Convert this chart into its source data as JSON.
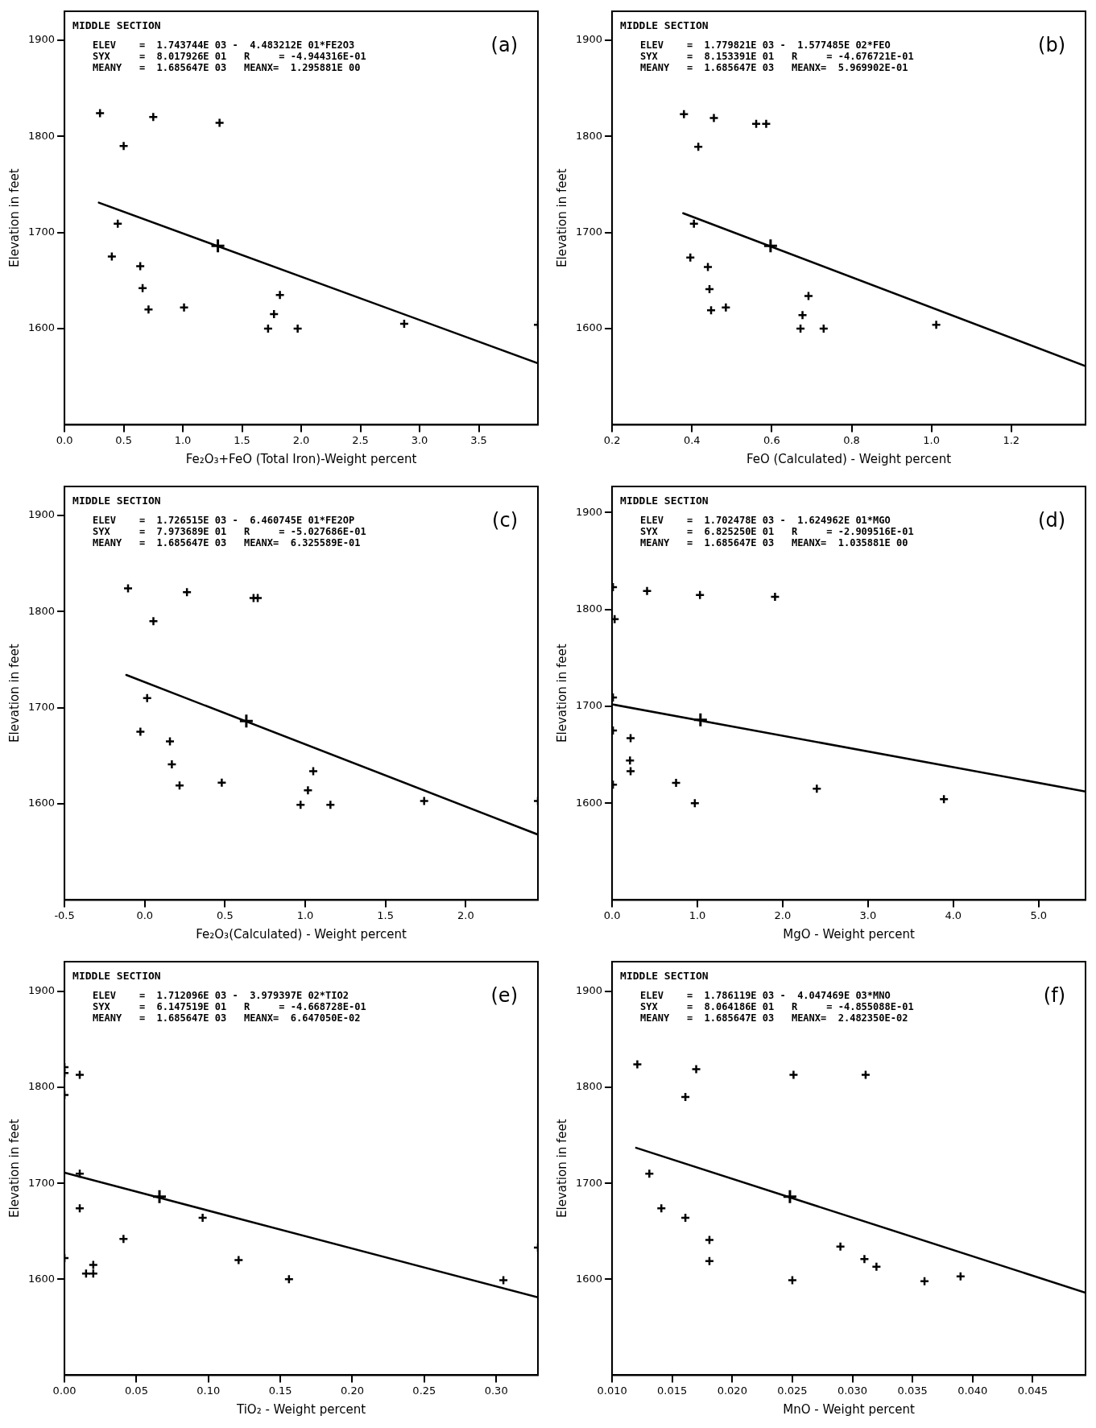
{
  "chart_data": [
    {
      "type": "scatter",
      "title": "MIDDLE SECTION",
      "xlabel": "Fe₂O₃+FeO (Total Iron)-Weight percent",
      "ylabel": "Elevation in feet",
      "annotations": [
        "ELEV    =  1.743744E 03 -  4.483212E 01*FE2O3",
        "SYX     =  8.017926E 01   R     = -4.944316E-01",
        "MEANY   =  1.685647E 03   MEANX=  1.295881E 00",
        "(a)"
      ],
      "xlim": [
        0,
        4.0
      ],
      "ylim": [
        1500,
        1930
      ],
      "xticks": [
        {
          "value": 0,
          "label": "0.0"
        },
        {
          "value": 0.5,
          "label": "0.5"
        },
        {
          "value": 1,
          "label": "1.0"
        },
        {
          "value": 1.5,
          "label": "1.5"
        },
        {
          "value": 2,
          "label": "2.0"
        },
        {
          "value": 2.5,
          "label": "2.5"
        },
        {
          "value": 3,
          "label": "3.0"
        },
        {
          "value": 3.5,
          "label": "3.5"
        }
      ],
      "yticks": [
        1600,
        1700,
        1800,
        1900
      ],
      "legend": false,
      "marker": "cross",
      "series": [
        {
          "type": "scatter",
          "color": "#000000",
          "x": [
            0.3,
            0.5,
            0.75,
            1.31,
            0.45,
            0.4,
            0.64,
            0.66,
            0.71,
            1.01,
            1.82,
            1.77,
            1.72,
            1.97,
            2.87,
            4.0
          ],
          "values": [
            1824,
            1790,
            1820,
            1814,
            1709,
            1675,
            1665,
            1642,
            1620,
            1622,
            1635,
            1615,
            1600,
            1600,
            1605,
            1604
          ]
        },
        {
          "type": "scatter",
          "color": "#000000",
          "x": [
            1.296
          ],
          "values": [
            1686
          ]
        },
        {
          "type": "line",
          "color": "#000000",
          "marker": "none",
          "x": [
            0.29,
            4.0
          ],
          "values": [
            1731,
            1564
          ]
        }
      ]
    },
    {
      "type": "scatter",
      "title": "MIDDLE SECTION",
      "xlabel": "FeO (Calculated) - Weight percent",
      "ylabel": "Elevation in feet",
      "annotations": [
        "ELEV    =  1.779821E 03 -  1.577485E 02*FEO",
        "SYX     =  8.153391E 01   R     = -4.676721E-01",
        "MEANY   =  1.685647E 03   MEANX=  5.969902E-01",
        "(b)"
      ],
      "xlim": [
        0.2,
        1.386
      ],
      "ylim": [
        1500,
        1930
      ],
      "xticks": [
        {
          "value": 0.2,
          "label": "0.2"
        },
        {
          "value": 0.4,
          "label": "0.4"
        },
        {
          "value": 0.6,
          "label": "0.6"
        },
        {
          "value": 0.8,
          "label": "0.8"
        },
        {
          "value": 1.0,
          "label": "1.0"
        },
        {
          "value": 1.2,
          "label": "1.2"
        }
      ],
      "yticks": [
        1600,
        1700,
        1800,
        1900
      ],
      "legend": false,
      "marker": "cross",
      "series": [
        {
          "type": "scatter",
          "color": "#000000",
          "x": [
            0.38,
            0.416,
            0.455,
            0.561,
            0.586,
            0.405,
            0.396,
            0.44,
            0.444,
            0.448,
            0.485,
            0.692,
            0.677,
            0.672,
            0.73,
            1.012
          ],
          "values": [
            1823,
            1789,
            1819,
            1813,
            1813,
            1709,
            1674,
            1664,
            1641,
            1619,
            1622,
            1634,
            1614,
            1600,
            1600,
            1604
          ]
        },
        {
          "type": "scatter",
          "color": "#000000",
          "x": [
            0.597
          ],
          "values": [
            1686
          ]
        },
        {
          "type": "line",
          "color": "#000000",
          "marker": "none",
          "x": [
            0.378,
            1.386
          ],
          "values": [
            1720,
            1561
          ]
        }
      ]
    },
    {
      "type": "scatter",
      "title": "MIDDLE SECTION",
      "xlabel": "Fe₂O₃(Calculated) - Weight percent",
      "ylabel": "Elevation in feet",
      "annotations": [
        "ELEV    =  1.726515E 03 -  6.460745E 01*FE2OP",
        "SYX     =  7.973689E 01   R     = -5.027686E-01",
        "MEANY   =  1.685647E 03   MEANX=  6.325589E-01",
        "(c)"
      ],
      "xlim": [
        -0.5,
        2.45
      ],
      "ylim": [
        1500,
        1930
      ],
      "xticks": [
        {
          "value": -0.5,
          "label": "-0.5"
        },
        {
          "value": 0,
          "label": "0.0"
        },
        {
          "value": 0.5,
          "label": "0.5"
        },
        {
          "value": 1,
          "label": "1.0"
        },
        {
          "value": 1.5,
          "label": "1.5"
        },
        {
          "value": 2,
          "label": "2.0"
        }
      ],
      "yticks": [
        1600,
        1700,
        1800,
        1900
      ],
      "legend": false,
      "marker": "cross",
      "series": [
        {
          "type": "scatter",
          "color": "#000000",
          "x": [
            -0.104,
            0.054,
            0.263,
            0.678,
            0.704,
            0.015,
            -0.027,
            0.157,
            0.169,
            0.217,
            0.48,
            1.05,
            1.017,
            0.971,
            1.157,
            1.741,
            2.45
          ],
          "values": [
            1824,
            1790,
            1820,
            1814,
            1814,
            1710,
            1675,
            1665,
            1641,
            1619,
            1622,
            1634,
            1614,
            1599,
            1599,
            1603,
            1603
          ]
        },
        {
          "type": "scatter",
          "color": "#000000",
          "x": [
            0.633
          ],
          "values": [
            1686
          ]
        },
        {
          "type": "line",
          "color": "#000000",
          "marker": "none",
          "x": [
            -0.115,
            2.45
          ],
          "values": [
            1734,
            1568
          ]
        }
      ]
    },
    {
      "type": "scatter",
      "title": "MIDDLE SECTION",
      "xlabel": "MgO - Weight percent",
      "ylabel": "Elevation in feet",
      "annotations": [
        "ELEV    =  1.702478E 03 -  1.624962E 01*MGO",
        "SYX     =  6.825250E 01   R     = -2.909516E-01",
        "MEANY   =  1.685647E 03   MEANX=  1.035881E 00",
        "(d)"
      ],
      "xlim": [
        0,
        5.55
      ],
      "ylim": [
        1500,
        1927
      ],
      "xticks": [
        {
          "value": 0,
          "label": "0.0"
        },
        {
          "value": 1,
          "label": "1.0"
        },
        {
          "value": 2,
          "label": "2.0"
        },
        {
          "value": 3,
          "label": "3.0"
        },
        {
          "value": 4,
          "label": "4.0"
        },
        {
          "value": 5,
          "label": "5.0"
        }
      ],
      "yticks": [
        1600,
        1700,
        1800,
        1900
      ],
      "legend": false,
      "marker": "cross",
      "series": [
        {
          "type": "scatter",
          "color": "#000000",
          "x": [
            0.01,
            0.03,
            0.41,
            1.03,
            1.91,
            0.01,
            0.01,
            0.01,
            0.217,
            0.21,
            0.217,
            0.75,
            0.97,
            2.4,
            3.89
          ],
          "values": [
            1823,
            1790,
            1819,
            1815,
            1813,
            1709,
            1675,
            1619,
            1667,
            1644,
            1633,
            1621,
            1600,
            1615,
            1604
          ]
        },
        {
          "type": "scatter",
          "color": "#000000",
          "x": [
            1.036
          ],
          "values": [
            1686
          ]
        },
        {
          "type": "line",
          "color": "#000000",
          "marker": "none",
          "x": [
            0,
            5.55
          ],
          "values": [
            1702,
            1612
          ]
        }
      ]
    },
    {
      "type": "scatter",
      "title": "MIDDLE SECTION",
      "xlabel": "TiO₂ - Weight percent",
      "ylabel": "Elevation in feet",
      "annotations": [
        "ELEV    =  1.712096E 03 -  3.979397E 02*TIO2",
        "SYX     =  6.147519E 01   R     = -4.668728E-01",
        "MEANY   =  1.685647E 03   MEANX=  6.647050E-02",
        "(e)"
      ],
      "xlim": [
        0,
        0.329
      ],
      "ylim": [
        1500,
        1931
      ],
      "xticks": [
        {
          "value": 0,
          "label": "0.00"
        },
        {
          "value": 0.05,
          "label": "0.05"
        },
        {
          "value": 0.1,
          "label": "0.10"
        },
        {
          "value": 0.15,
          "label": "0.15"
        },
        {
          "value": 0.2,
          "label": "0.20"
        },
        {
          "value": 0.25,
          "label": "0.25"
        },
        {
          "value": 0.3,
          "label": "0.30"
        }
      ],
      "yticks": [
        1600,
        1700,
        1800,
        1900
      ],
      "legend": false,
      "marker": "cross",
      "series": [
        {
          "type": "scatter",
          "color": "#000000",
          "x": [
            0,
            0,
            0,
            0,
            0.0106,
            0.0106,
            0.0106,
            0.041,
            0.02,
            0.015,
            0.02,
            0.096,
            0.121,
            0.156,
            0.305,
            0.329
          ],
          "values": [
            1821,
            1815,
            1792,
            1622,
            1813,
            1710,
            1674,
            1642,
            1615,
            1606,
            1606,
            1664,
            1620,
            1600,
            1599,
            1633
          ]
        },
        {
          "type": "scatter",
          "color": "#000000",
          "x": [
            0.066
          ],
          "values": [
            1686
          ]
        },
        {
          "type": "line",
          "color": "#000000",
          "marker": "none",
          "x": [
            0,
            0.329
          ],
          "values": [
            1711,
            1581
          ]
        }
      ]
    },
    {
      "type": "scatter",
      "title": "MIDDLE SECTION",
      "xlabel": "MnO - Weight percent",
      "ylabel": "Elevation in feet",
      "annotations": [
        "ELEV    =  1.786119E 03 -  4.047469E 03*MNO",
        "SYX     =  8.064186E 01   R     = -4.855088E-01",
        "MEANY   =  1.685647E 03   MEANX=  2.482350E-02",
        "(f)"
      ],
      "xlim": [
        0.01,
        0.0494
      ],
      "ylim": [
        1500,
        1931
      ],
      "xticks": [
        {
          "value": 0.01,
          "label": "0.010"
        },
        {
          "value": 0.015,
          "label": "0.015"
        },
        {
          "value": 0.02,
          "label": "0.020"
        },
        {
          "value": 0.025,
          "label": "0.025"
        },
        {
          "value": 0.03,
          "label": "0.030"
        },
        {
          "value": 0.035,
          "label": "0.035"
        },
        {
          "value": 0.04,
          "label": "0.040"
        },
        {
          "value": 0.045,
          "label": "0.045"
        }
      ],
      "yticks": [
        1600,
        1700,
        1800,
        1900
      ],
      "legend": false,
      "marker": "cross",
      "series": [
        {
          "type": "scatter",
          "color": "#000000",
          "x": [
            0.0121,
            0.0161,
            0.017,
            0.0251,
            0.0311,
            0.0131,
            0.0141,
            0.0161,
            0.0181,
            0.0181,
            0.025,
            0.029,
            0.031,
            0.032,
            0.036,
            0.039
          ],
          "values": [
            1824,
            1790,
            1819,
            1813,
            1813,
            1710,
            1674,
            1664,
            1641,
            1619,
            1599,
            1634,
            1621,
            1613,
            1598,
            1603
          ]
        },
        {
          "type": "scatter",
          "color": "#000000",
          "x": [
            0.0248
          ],
          "values": [
            1686
          ]
        },
        {
          "type": "line",
          "color": "#000000",
          "marker": "none",
          "x": [
            0.012,
            0.0494
          ],
          "values": [
            1737,
            1586
          ]
        }
      ]
    }
  ]
}
